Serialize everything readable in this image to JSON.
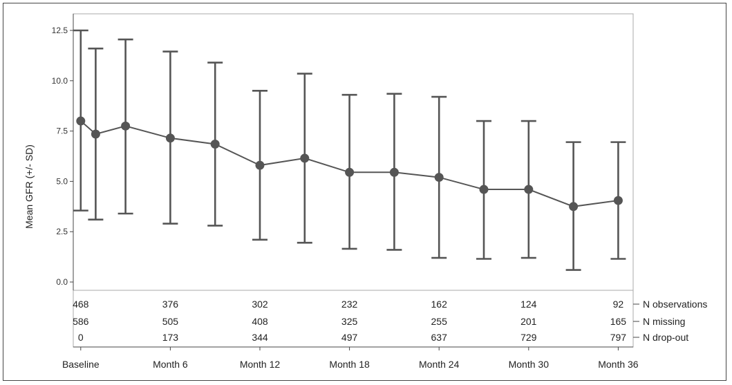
{
  "chart_data": {
    "type": "line",
    "ylabel": "Mean GFR (+/- SD)",
    "ylim": [
      0,
      12.5
    ],
    "yticks": [
      "0.0",
      "2.5",
      "5.0",
      "7.5",
      "10.0",
      "12.5"
    ],
    "ytick_values": [
      0,
      2.5,
      5,
      7.5,
      10,
      12.5
    ],
    "xlim": [
      -0.5,
      37
    ],
    "xtick_labels": [
      "Baseline",
      "Month 6",
      "Month 12",
      "Month 18",
      "Month 24",
      "Month 30",
      "Month 36"
    ],
    "xtick_values": [
      0,
      6,
      12,
      18,
      24,
      30,
      36
    ],
    "series": [
      {
        "x": [
          0,
          1,
          3,
          6,
          9,
          12,
          15,
          18,
          21,
          24,
          27,
          30,
          33,
          36
        ],
        "mean": [
          8.0,
          7.35,
          7.75,
          7.15,
          6.85,
          5.8,
          6.15,
          5.45,
          5.45,
          5.2,
          4.6,
          4.6,
          3.75,
          4.05
        ],
        "upper": [
          12.5,
          11.6,
          12.05,
          11.45,
          10.9,
          9.5,
          10.35,
          9.3,
          9.35,
          9.2,
          8.0,
          8.0,
          6.95,
          6.95
        ],
        "lower": [
          3.55,
          3.1,
          3.4,
          2.9,
          2.8,
          2.1,
          1.95,
          1.65,
          1.6,
          1.2,
          1.15,
          1.2,
          0.6,
          1.15
        ]
      }
    ],
    "count_table": {
      "x": [
        0,
        6,
        12,
        18,
        24,
        30,
        36
      ],
      "rows": [
        {
          "label": "N observations",
          "values": [
            "468",
            "376",
            "302",
            "232",
            "162",
            "124",
            "92"
          ]
        },
        {
          "label": "N missing",
          "values": [
            "586",
            "505",
            "408",
            "325",
            "255",
            "201",
            "165"
          ]
        },
        {
          "label": "N drop-out",
          "values": [
            "0",
            "173",
            "344",
            "497",
            "637",
            "729",
            "797"
          ]
        }
      ]
    }
  }
}
